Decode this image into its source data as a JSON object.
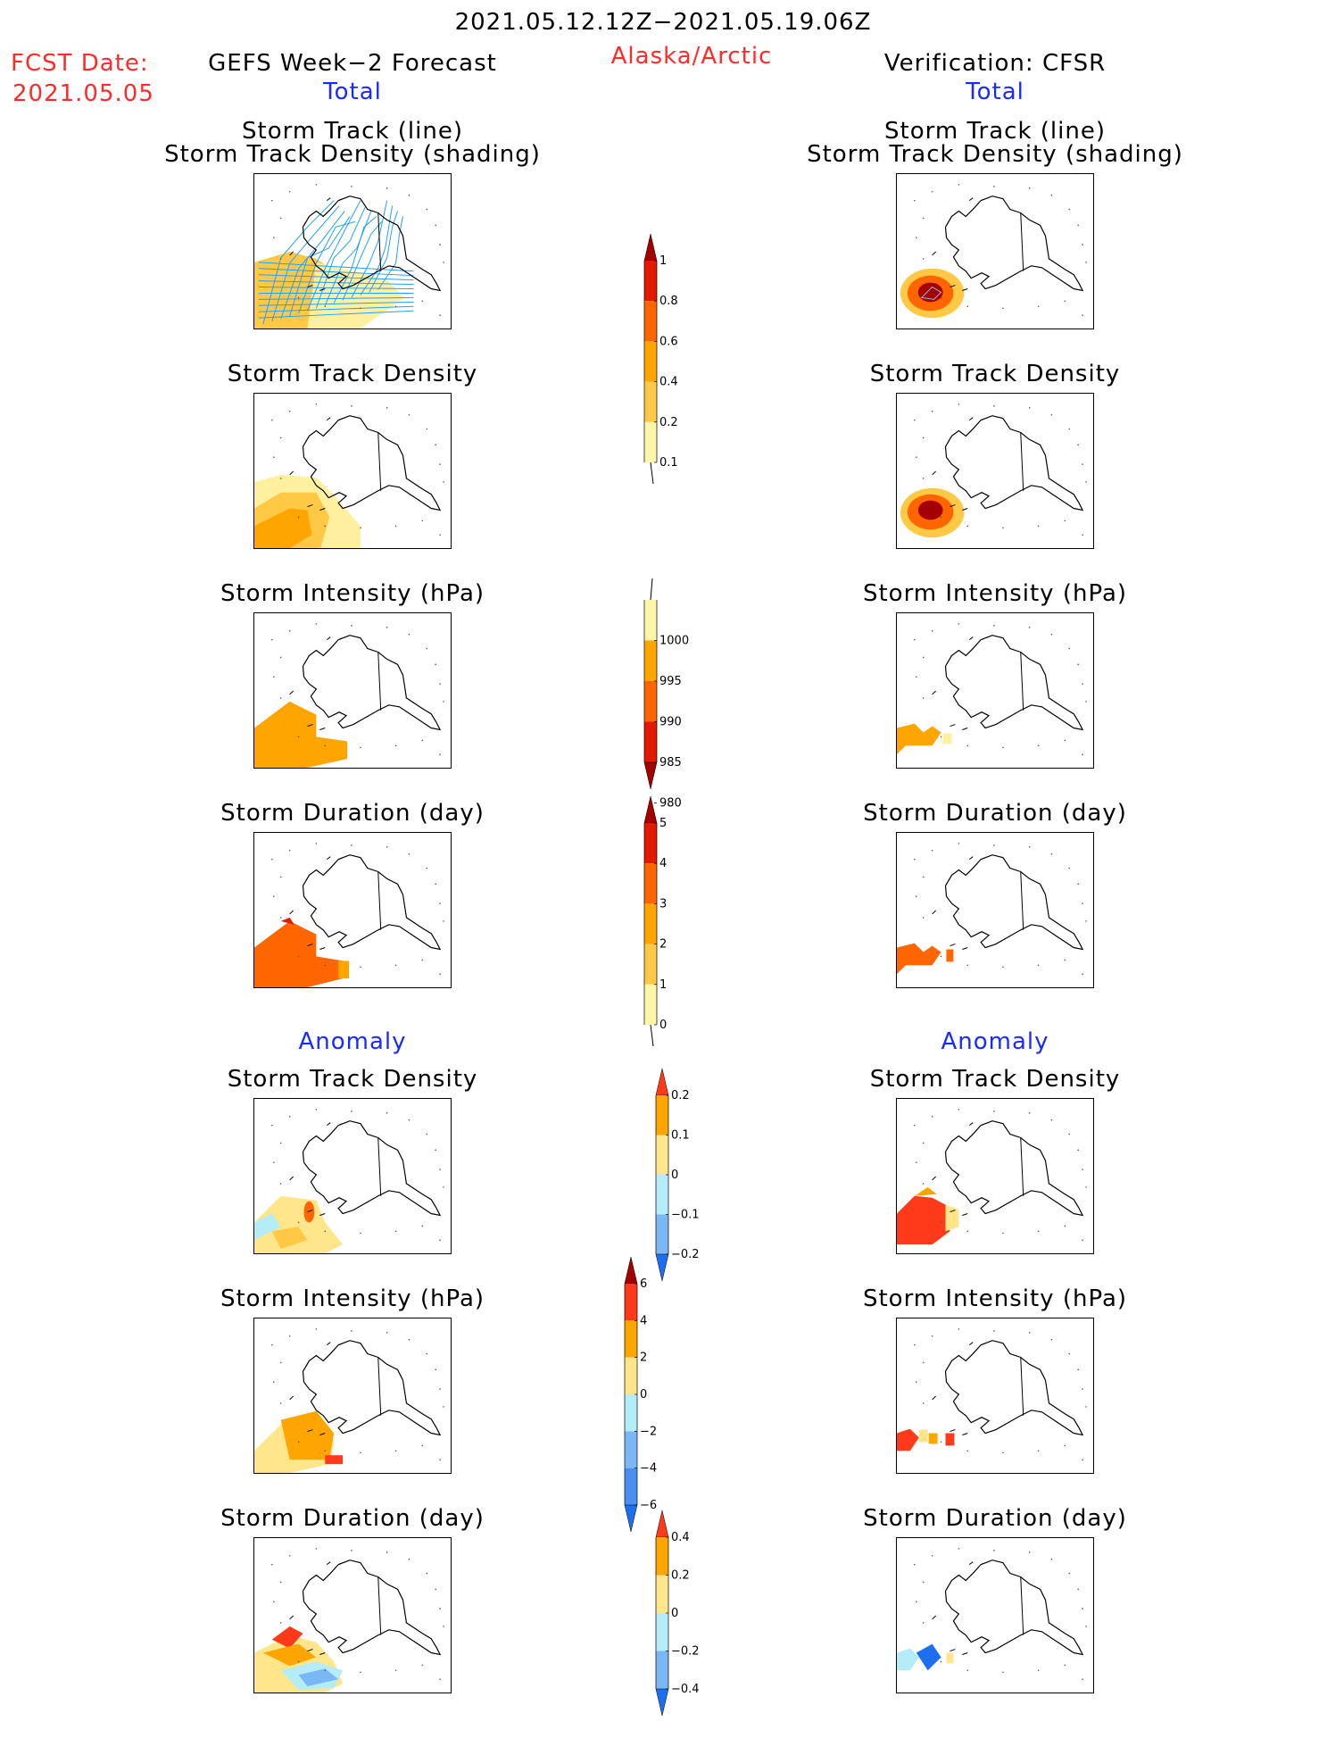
{
  "header": {
    "date_range": "2021.05.12.12Z−2021.05.19.06Z",
    "region": "Alaska/Arctic",
    "fcst_label": "FCST Date:",
    "fcst_date": "2021.05.05",
    "left_title": "GEFS Week−2 Forecast",
    "right_title": "Verification: CFSR"
  },
  "sections": {
    "total": "Total",
    "anomaly": "Anomaly"
  },
  "panel_titles": {
    "track_line": "Storm Track (line)",
    "track_density_shading": "Storm Track Density (shading)",
    "track_density": "Storm Track Density",
    "intensity": "Storm Intensity (hPa)",
    "duration": "Storm Duration (day)"
  },
  "colorbars": {
    "density": {
      "labels": [
        "1",
        "0.8",
        "0.6",
        "0.4",
        "0.2",
        "0.1"
      ],
      "colors": [
        "#a50000",
        "#e21a00",
        "#ff6600",
        "#ffa500",
        "#ffc845",
        "#fff7a8"
      ]
    },
    "intensity": {
      "labels": [
        "1000",
        "995",
        "990",
        "985",
        "980"
      ],
      "colors": [
        "#fff7a8",
        "#ffa500",
        "#ff6600",
        "#e21a00",
        "#a50000"
      ]
    },
    "duration": {
      "labels": [
        "5",
        "4",
        "3",
        "2",
        "1",
        "0"
      ],
      "colors": [
        "#a50000",
        "#e21a00",
        "#ff6600",
        "#ffa500",
        "#ffc845",
        "#fff7a8"
      ]
    },
    "anom_density": {
      "labels": [
        "0.2",
        "0.1",
        "0",
        "−0.1",
        "−0.2"
      ],
      "colors": [
        "#ff3a1a",
        "#ffa500",
        "#ffe68a",
        "#b4ecf8",
        "#7ab8f5",
        "#1e6ff0"
      ]
    },
    "anom_intensity": {
      "labels": [
        "6",
        "4",
        "2",
        "0",
        "−2",
        "−4",
        "−6"
      ],
      "colors": [
        "#a50000",
        "#ff3a1a",
        "#ffa500",
        "#ffe68a",
        "#b4ecf8",
        "#7ab8f5",
        "#4a8ff0",
        "#1e6ff0"
      ]
    },
    "anom_duration": {
      "labels": [
        "0.4",
        "0.2",
        "0",
        "−0.2",
        "−0.4"
      ],
      "colors": [
        "#ff3a1a",
        "#ffa500",
        "#ffe68a",
        "#b4ecf8",
        "#7ab8f5",
        "#1e6ff0"
      ]
    }
  },
  "colors": {
    "title_red": "#ff2a2a",
    "section_blue": "#1a2bff",
    "track_line": "#1fa0ff"
  }
}
